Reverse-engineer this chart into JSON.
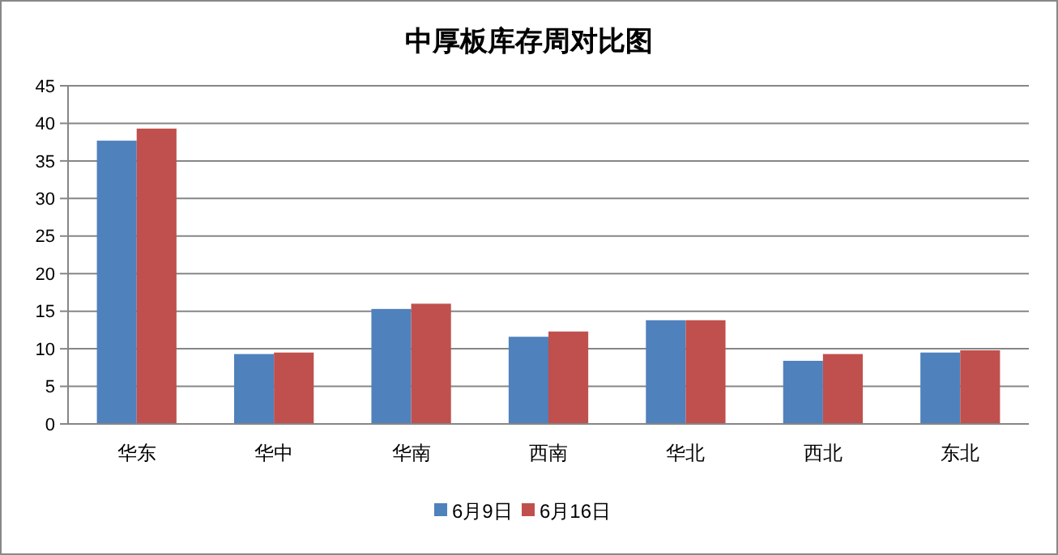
{
  "chart_data": {
    "type": "bar",
    "title": "中厚板库存周对比图",
    "categories": [
      "华东",
      "华中",
      "华南",
      "西南",
      "华北",
      "西北",
      "东北"
    ],
    "series": [
      {
        "name": "6月9日",
        "color": "#4f81bd",
        "values": [
          37.7,
          9.3,
          15.3,
          11.6,
          13.8,
          8.4,
          9.5
        ]
      },
      {
        "name": "6月16日",
        "color": "#c0504d",
        "values": [
          39.3,
          9.5,
          16.0,
          12.3,
          13.8,
          9.3,
          9.8
        ]
      }
    ],
    "ylim": [
      0,
      45
    ],
    "yticks": [
      0,
      5,
      10,
      15,
      20,
      25,
      30,
      35,
      40,
      45
    ],
    "grid": "y",
    "legend": "bottom"
  }
}
